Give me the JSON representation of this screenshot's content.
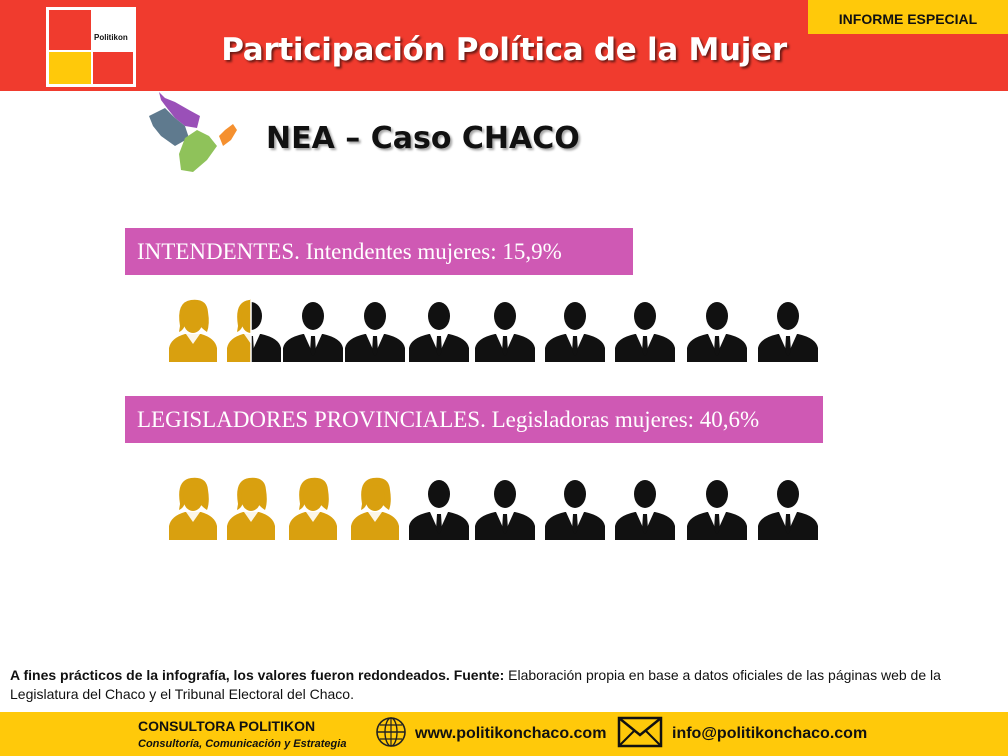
{
  "header": {
    "title": "Participación Política de la Mujer",
    "badge": "INFORME ESPECIAL",
    "logo_text": "Politikon"
  },
  "section": {
    "title": "NEA – Caso CHACO"
  },
  "colors": {
    "header_red": "#f03b2e",
    "accent_yellow": "#ffc90a",
    "label_magenta": "#cf59b4",
    "woman_icon": "#d9a00f",
    "man_icon": "#111111"
  },
  "chart_data": [
    {
      "type": "pictogram",
      "label": "INTENDENTES. Intendentes mujeres: 15,9%",
      "icons_total": 10,
      "women_icons": 1.5,
      "value_percent": 15.9
    },
    {
      "type": "pictogram",
      "label": "LEGISLADORES PROVINCIALES. Legisladoras mujeres: 40,6%",
      "icons_total": 10,
      "women_icons": 4,
      "value_percent": 40.6
    }
  ],
  "footnote": {
    "bold": "A fines prácticos de la infografía, los valores fueron redondeados. Fuente:",
    "text": " Elaboración propia en base a datos oficiales de las páginas web de la Legislatura del Chaco y el Tribunal Electoral del Chaco."
  },
  "footer": {
    "company": "CONSULTORA POLITIKON",
    "tagline": "Consultoría, Comunicación y Estrategia",
    "website": "www.politikonchaco.com",
    "email": "info@politikonchaco.com",
    "globe_icon": "globe-icon",
    "mail_icon": "envelope-icon"
  }
}
